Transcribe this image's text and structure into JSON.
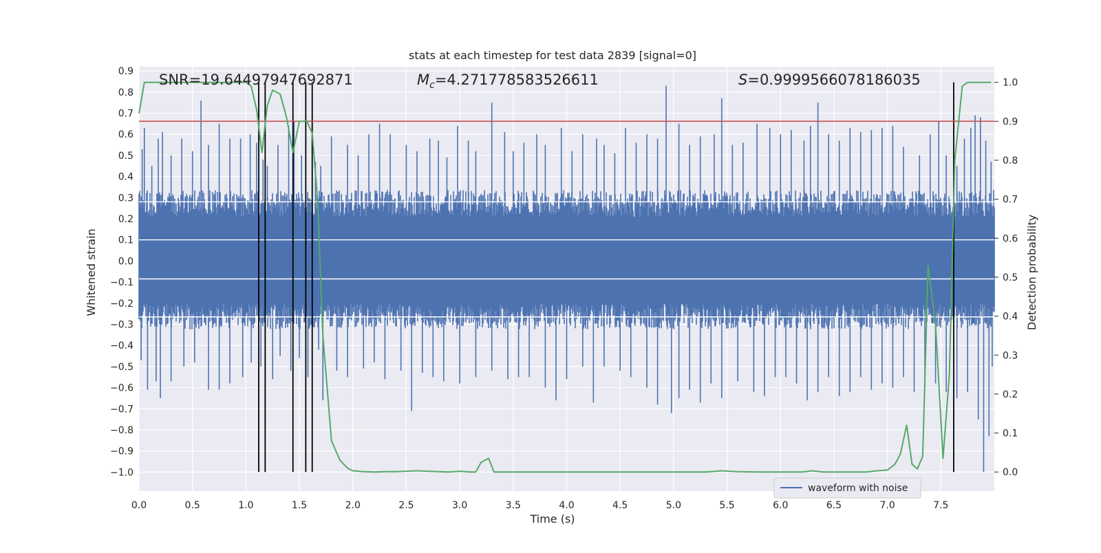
{
  "chart_data": {
    "type": "line",
    "title": "stats at each timestep for test data 2839 [signal=0]",
    "xlabel": "Time (s)",
    "ylabel": "Whitened strain",
    "ylabel_right": "Detection probability",
    "xlim": [
      0.0,
      8.0
    ],
    "ylim": [
      -1.09,
      0.92
    ],
    "ylim_right": [
      -0.049,
      1.04
    ],
    "x_ticks": [
      "0.0",
      "0.5",
      "1.0",
      "1.5",
      "2.0",
      "2.5",
      "3.0",
      "3.5",
      "4.0",
      "4.5",
      "5.0",
      "5.5",
      "6.0",
      "6.5",
      "7.0",
      "7.5"
    ],
    "y_ticks": [
      "0.9",
      "0.8",
      "0.7",
      "0.6",
      "0.5",
      "0.4",
      "0.3",
      "0.2",
      "0.1",
      "0.0",
      "−0.1",
      "−0.2",
      "−0.3",
      "−0.4",
      "−0.5",
      "−0.6",
      "−0.7",
      "−0.8",
      "−0.9",
      "−1.0"
    ],
    "y_ticks_right": [
      "1.0",
      "0.9",
      "0.8",
      "0.7",
      "0.6",
      "0.5",
      "0.4",
      "0.3",
      "0.2",
      "0.1",
      "0.0"
    ],
    "grid": true,
    "legend_position": "lower-right",
    "annotations": {
      "snr": "SNR=19.64497947692871",
      "mc_symbol": "M",
      "mc_sub": "c",
      "mc_value": "=4.271778583526611",
      "s_symbol": "S",
      "s_value": "=0.9999566078186035"
    },
    "series": [
      {
        "name": "waveform with noise",
        "color": "#4c72b0",
        "description_kind": "dense noise trace",
        "typical_max": 0.28,
        "typical_min": -0.27,
        "peaks_top": [
          [
            0.03,
            0.53
          ],
          [
            0.05,
            0.63
          ],
          [
            0.12,
            0.45
          ],
          [
            0.18,
            0.58
          ],
          [
            0.22,
            0.61
          ],
          [
            0.3,
            0.5
          ],
          [
            0.4,
            0.58
          ],
          [
            0.5,
            0.52
          ],
          [
            0.58,
            0.76
          ],
          [
            0.65,
            0.55
          ],
          [
            0.75,
            0.65
          ],
          [
            0.85,
            0.58
          ],
          [
            0.95,
            0.58
          ],
          [
            1.04,
            0.6
          ],
          [
            1.1,
            0.56
          ],
          [
            1.16,
            0.48
          ],
          [
            1.2,
            0.45
          ],
          [
            1.3,
            0.55
          ],
          [
            1.4,
            0.64
          ],
          [
            1.45,
            0.66
          ],
          [
            1.52,
            0.5
          ],
          [
            1.65,
            0.47
          ],
          [
            1.7,
            0.45
          ],
          [
            1.8,
            0.59
          ],
          [
            1.95,
            0.55
          ],
          [
            2.05,
            0.5
          ],
          [
            2.15,
            0.6
          ],
          [
            2.25,
            0.65
          ],
          [
            2.35,
            0.6
          ],
          [
            2.5,
            0.55
          ],
          [
            2.6,
            0.52
          ],
          [
            2.72,
            0.58
          ],
          [
            2.8,
            0.57
          ],
          [
            2.88,
            0.49
          ],
          [
            2.98,
            0.64
          ],
          [
            3.08,
            0.57
          ],
          [
            3.15,
            0.52
          ],
          [
            3.3,
            0.75
          ],
          [
            3.42,
            0.61
          ],
          [
            3.5,
            0.52
          ],
          [
            3.6,
            0.56
          ],
          [
            3.72,
            0.6
          ],
          [
            3.8,
            0.55
          ],
          [
            3.95,
            0.63
          ],
          [
            4.05,
            0.52
          ],
          [
            4.15,
            0.6
          ],
          [
            4.28,
            0.58
          ],
          [
            4.35,
            0.55
          ],
          [
            4.45,
            0.51
          ],
          [
            4.55,
            0.63
          ],
          [
            4.65,
            0.56
          ],
          [
            4.75,
            0.6
          ],
          [
            4.85,
            0.58
          ],
          [
            4.93,
            0.83
          ],
          [
            5.05,
            0.65
          ],
          [
            5.15,
            0.55
          ],
          [
            5.25,
            0.59
          ],
          [
            5.38,
            0.6
          ],
          [
            5.45,
            0.77
          ],
          [
            5.55,
            0.55
          ],
          [
            5.65,
            0.56
          ],
          [
            5.78,
            0.65
          ],
          [
            5.9,
            0.63
          ],
          [
            6.0,
            0.6
          ],
          [
            6.1,
            0.62
          ],
          [
            6.22,
            0.57
          ],
          [
            6.28,
            0.64
          ],
          [
            6.35,
            0.75
          ],
          [
            6.45,
            0.6
          ],
          [
            6.55,
            0.57
          ],
          [
            6.65,
            0.63
          ],
          [
            6.75,
            0.61
          ],
          [
            6.85,
            0.62
          ],
          [
            6.95,
            0.63
          ],
          [
            7.05,
            0.64
          ],
          [
            7.15,
            0.54
          ],
          [
            7.3,
            0.5
          ],
          [
            7.4,
            0.6
          ],
          [
            7.48,
            0.66
          ],
          [
            7.55,
            0.5
          ],
          [
            7.65,
            0.45
          ],
          [
            7.72,
            0.58
          ],
          [
            7.78,
            0.63
          ],
          [
            7.82,
            0.69
          ],
          [
            7.87,
            0.68
          ],
          [
            7.92,
            0.57
          ],
          [
            7.97,
            0.47
          ]
        ],
        "peaks_bottom": [
          [
            0.02,
            -0.47
          ],
          [
            0.08,
            -0.61
          ],
          [
            0.16,
            -0.57
          ],
          [
            0.2,
            -0.65
          ],
          [
            0.3,
            -0.57
          ],
          [
            0.42,
            -0.5
          ],
          [
            0.52,
            -0.48
          ],
          [
            0.65,
            -0.61
          ],
          [
            0.75,
            -0.61
          ],
          [
            0.85,
            -0.58
          ],
          [
            0.97,
            -0.55
          ],
          [
            1.05,
            -0.48
          ],
          [
            1.14,
            -0.5
          ],
          [
            1.18,
            -0.79
          ],
          [
            1.25,
            -0.56
          ],
          [
            1.32,
            -0.45
          ],
          [
            1.42,
            -0.52
          ],
          [
            1.5,
            -0.46
          ],
          [
            1.58,
            -0.55
          ],
          [
            1.68,
            -0.42
          ],
          [
            1.72,
            -0.66
          ],
          [
            1.85,
            -0.52
          ],
          [
            1.95,
            -0.55
          ],
          [
            2.1,
            -0.51
          ],
          [
            2.2,
            -0.48
          ],
          [
            2.3,
            -0.56
          ],
          [
            2.45,
            -0.52
          ],
          [
            2.55,
            -0.71
          ],
          [
            2.65,
            -0.53
          ],
          [
            2.75,
            -0.55
          ],
          [
            2.85,
            -0.57
          ],
          [
            3.0,
            -0.58
          ],
          [
            3.15,
            -0.55
          ],
          [
            3.3,
            -0.52
          ],
          [
            3.45,
            -0.56
          ],
          [
            3.55,
            -0.55
          ],
          [
            3.65,
            -0.55
          ],
          [
            3.8,
            -0.6
          ],
          [
            3.9,
            -0.66
          ],
          [
            4.0,
            -0.56
          ],
          [
            4.15,
            -0.5
          ],
          [
            4.25,
            -0.67
          ],
          [
            4.35,
            -0.5
          ],
          [
            4.5,
            -0.52
          ],
          [
            4.6,
            -0.55
          ],
          [
            4.75,
            -0.6
          ],
          [
            4.85,
            -0.68
          ],
          [
            4.98,
            -0.72
          ],
          [
            5.05,
            -0.65
          ],
          [
            5.15,
            -0.61
          ],
          [
            5.25,
            -0.67
          ],
          [
            5.35,
            -0.58
          ],
          [
            5.45,
            -0.65
          ],
          [
            5.6,
            -0.57
          ],
          [
            5.75,
            -0.62
          ],
          [
            5.85,
            -0.64
          ],
          [
            5.95,
            -0.55
          ],
          [
            6.05,
            -0.55
          ],
          [
            6.15,
            -0.58
          ],
          [
            6.25,
            -0.66
          ],
          [
            6.35,
            -0.62
          ],
          [
            6.45,
            -0.55
          ],
          [
            6.55,
            -0.64
          ],
          [
            6.65,
            -0.62
          ],
          [
            6.75,
            -0.55
          ],
          [
            6.85,
            -0.61
          ],
          [
            6.95,
            -0.58
          ],
          [
            7.05,
            -0.6
          ],
          [
            7.15,
            -0.55
          ],
          [
            7.25,
            -0.62
          ],
          [
            7.35,
            -0.6
          ],
          [
            7.45,
            -0.58
          ],
          [
            7.55,
            -0.62
          ],
          [
            7.65,
            -0.65
          ],
          [
            7.75,
            -0.62
          ],
          [
            7.85,
            -0.75
          ],
          [
            7.9,
            -1.0
          ],
          [
            7.95,
            -0.83
          ],
          [
            7.98,
            -0.5
          ]
        ]
      },
      {
        "name": "",
        "color": "#55a868",
        "axis": "right",
        "x": [
          0.0,
          0.05,
          0.1,
          0.2,
          0.3,
          0.4,
          0.5,
          0.6,
          0.7,
          0.8,
          0.9,
          1.0,
          1.05,
          1.1,
          1.15,
          1.2,
          1.25,
          1.32,
          1.38,
          1.44,
          1.5,
          1.57,
          1.62,
          1.67,
          1.72,
          1.8,
          1.88,
          1.95,
          2.0,
          2.1,
          2.2,
          2.3,
          2.4,
          2.5,
          2.6,
          2.7,
          2.8,
          2.9,
          3.0,
          3.1,
          3.15,
          3.2,
          3.27,
          3.32,
          3.38,
          3.5,
          3.7,
          3.9,
          4.1,
          4.3,
          4.5,
          4.7,
          4.9,
          5.1,
          5.3,
          5.45,
          5.6,
          5.8,
          6.0,
          6.2,
          6.3,
          6.4,
          6.6,
          6.8,
          6.9,
          7.0,
          7.07,
          7.12,
          7.18,
          7.23,
          7.28,
          7.33,
          7.38,
          7.45,
          7.52,
          7.58,
          7.63,
          7.7,
          7.75,
          7.82,
          7.97
        ],
        "y": [
          0.92,
          1.0,
          1.0,
          1.0,
          1.0,
          1.0,
          1.0,
          1.0,
          1.0,
          1.0,
          1.0,
          1.0,
          0.99,
          0.93,
          0.82,
          0.94,
          0.98,
          0.97,
          0.91,
          0.82,
          0.9,
          0.9,
          0.87,
          0.7,
          0.35,
          0.08,
          0.03,
          0.01,
          0.003,
          0.001,
          0.0,
          0.001,
          0.001,
          0.002,
          0.003,
          0.002,
          0.001,
          0.0,
          0.002,
          0.0,
          0.0,
          0.025,
          0.035,
          0.0,
          0.0,
          0.0,
          0.0,
          0.0,
          0.0,
          0.0,
          0.0,
          0.0,
          0.0,
          0.0,
          0.0,
          0.003,
          0.001,
          0.0,
          0.0,
          0.0,
          0.003,
          0.0,
          0.0,
          0.0,
          0.003,
          0.005,
          0.02,
          0.045,
          0.12,
          0.02,
          0.008,
          0.04,
          0.53,
          0.38,
          0.035,
          0.25,
          0.8,
          0.99,
          1.0,
          1.0,
          1.0
        ]
      }
    ],
    "threshold_line": {
      "y_right": 0.9,
      "color": "#c44e52"
    },
    "vertical_markers": {
      "x": [
        1.12,
        1.18,
        1.44,
        1.56,
        1.62,
        7.62
      ],
      "color": "#000000"
    }
  }
}
